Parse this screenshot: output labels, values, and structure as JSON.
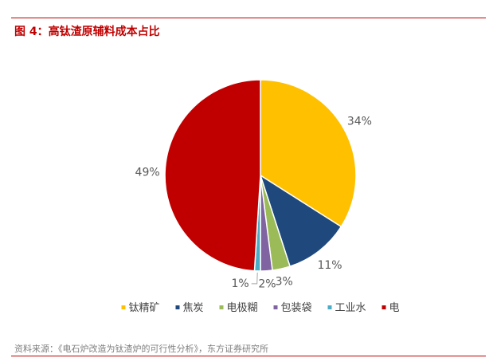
{
  "figure": {
    "title": "图 4：高钛渣原辅料成本占比",
    "source": "资料来源：《电石炉改造为钛渣炉的可行性分析》，东方证券研究所"
  },
  "chart_data": {
    "type": "pie",
    "title": "",
    "legend_position": "bottom",
    "slices": [
      {
        "name": "钛精矿",
        "value": 34,
        "label": "34%",
        "color": "#ffc000"
      },
      {
        "name": "焦炭",
        "value": 11,
        "label": "11%",
        "color": "#1f497d"
      },
      {
        "name": "电极糊",
        "value": 3,
        "label": "3%",
        "color": "#9bbb59"
      },
      {
        "name": "包装袋",
        "value": 2,
        "label": "2%",
        "color": "#8064a2"
      },
      {
        "name": "工业水",
        "value": 1,
        "label": "1%",
        "color": "#4bacc6"
      },
      {
        "name": "电",
        "value": 49,
        "label": "49%",
        "color": "#c00000"
      }
    ]
  }
}
